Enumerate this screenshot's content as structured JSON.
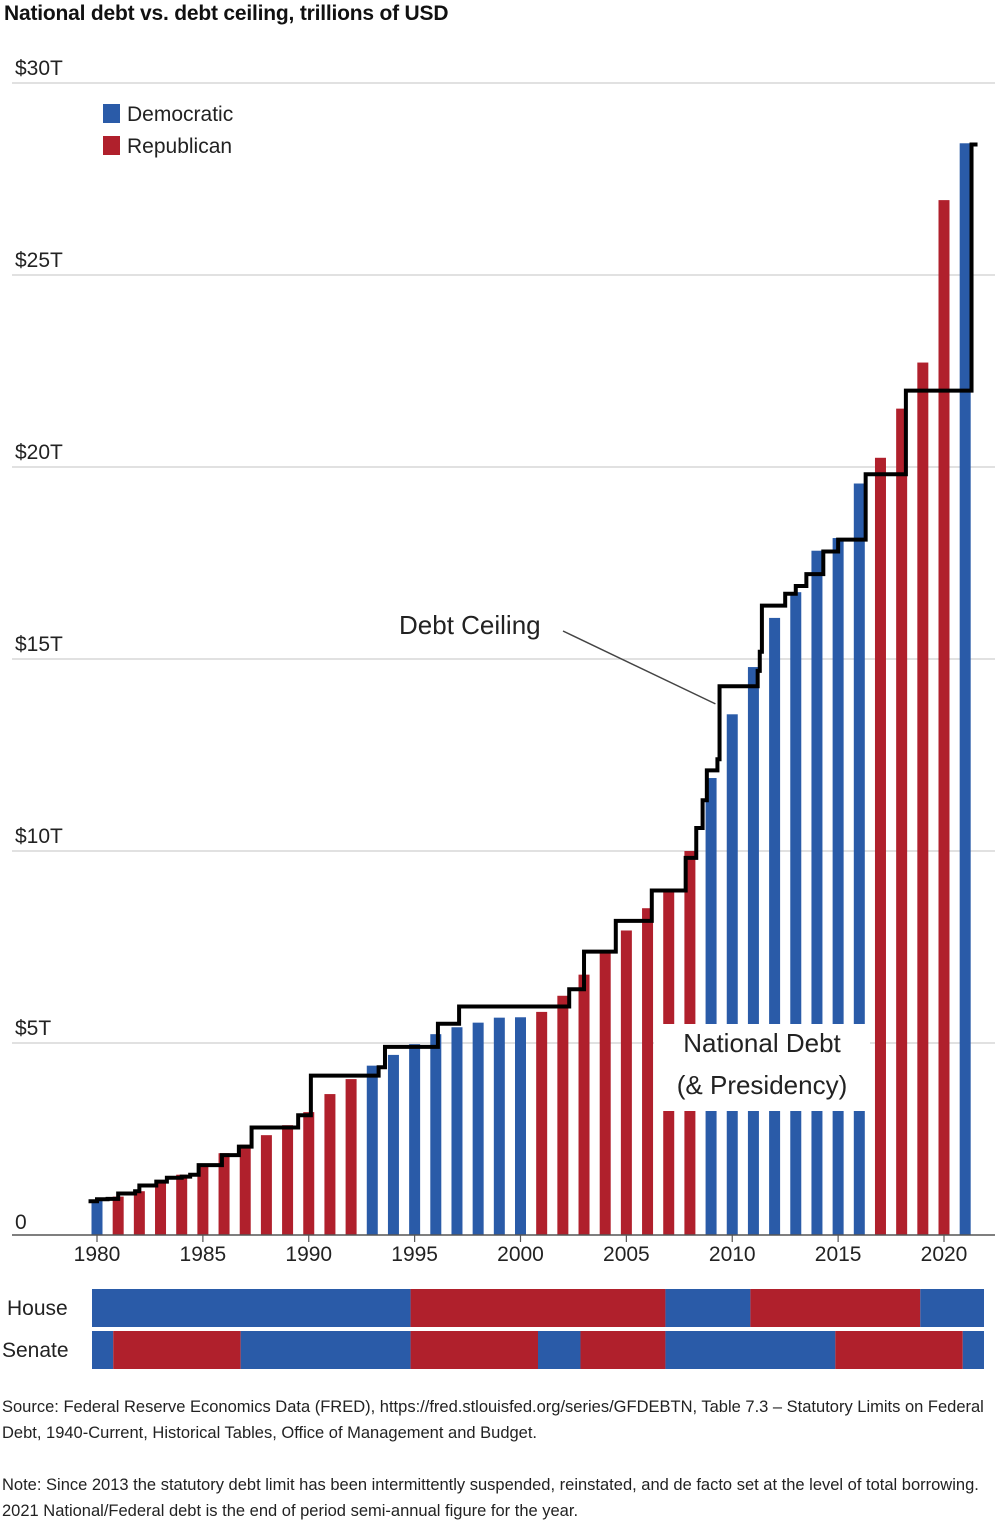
{
  "title": "National debt vs. debt ceiling, trillions of USD",
  "source_note": "Source: Federal Reserve Economics Data (FRED), https://fred.stlouisfed.org/series/GFDEBTN, Table 7.3 – Statutory Limits on Federal Debt, 1940-Current, Historical Tables, Office of Management and Budget.",
  "footnote": "Note: Since 2013 the statutory debt limit has been intermittently suspended, reinstated, and de facto set at the level of total borrowing. 2021 National/Federal debt is the end of period semi-annual figure for the year.",
  "colors": {
    "democratic": "#2a5ba8",
    "republican": "#b0202c",
    "ceiling": "#000000",
    "grid": "#cfcfcf"
  },
  "chart_data": {
    "type": "bar",
    "title": "National debt vs. debt ceiling, trillions of USD",
    "xlabel": "",
    "ylabel": "",
    "ylim": [
      0,
      30
    ],
    "xlim": [
      1979.5,
      2021.5
    ],
    "yticks": [
      {
        "value": 0,
        "label": "0"
      },
      {
        "value": 5,
        "label": "$5T"
      },
      {
        "value": 10,
        "label": "$10T"
      },
      {
        "value": 15,
        "label": "$15T"
      },
      {
        "value": 20,
        "label": "$20T"
      },
      {
        "value": 25,
        "label": "$25T"
      },
      {
        "value": 30,
        "label": "$30T"
      }
    ],
    "xticks": [
      1980,
      1985,
      1990,
      1995,
      2000,
      2005,
      2010,
      2015,
      2020
    ],
    "grid": true,
    "legend": {
      "placement": "top-left",
      "entries": [
        {
          "name": "Democratic",
          "party": "D"
        },
        {
          "name": "Republican",
          "party": "R"
        }
      ]
    },
    "series": [
      {
        "name": "National Debt (& Presidency)",
        "years": [
          1980,
          1981,
          1982,
          1983,
          1984,
          1985,
          1986,
          1987,
          1988,
          1989,
          1990,
          1991,
          1992,
          1993,
          1994,
          1995,
          1996,
          1997,
          1998,
          1999,
          2000,
          2001,
          2002,
          2003,
          2004,
          2005,
          2006,
          2007,
          2008,
          2009,
          2010,
          2011,
          2012,
          2013,
          2014,
          2015,
          2016,
          2017,
          2018,
          2019,
          2020,
          2021
        ],
        "values": [
          0.91,
          1.0,
          1.14,
          1.38,
          1.57,
          1.82,
          2.13,
          2.35,
          2.6,
          2.86,
          3.2,
          3.67,
          4.06,
          4.41,
          4.69,
          4.97,
          5.23,
          5.41,
          5.53,
          5.66,
          5.67,
          5.81,
          6.23,
          6.78,
          7.38,
          7.93,
          8.51,
          9.01,
          10.0,
          11.9,
          13.56,
          14.79,
          16.07,
          16.74,
          17.82,
          18.15,
          19.57,
          20.24,
          21.52,
          22.72,
          26.95,
          28.43
        ],
        "presidency": [
          "D",
          "R",
          "R",
          "R",
          "R",
          "R",
          "R",
          "R",
          "R",
          "R",
          "R",
          "R",
          "R",
          "D",
          "D",
          "D",
          "D",
          "D",
          "D",
          "D",
          "D",
          "R",
          "R",
          "R",
          "R",
          "R",
          "R",
          "R",
          "R",
          "D",
          "D",
          "D",
          "D",
          "D",
          "D",
          "D",
          "D",
          "R",
          "R",
          "R",
          "R",
          "D"
        ]
      },
      {
        "name": "Debt Ceiling",
        "type": "step",
        "points": [
          [
            1979.6,
            0.88
          ],
          [
            1980.0,
            0.93
          ],
          [
            1980.5,
            0.94
          ],
          [
            1981.0,
            1.08
          ],
          [
            1981.8,
            1.14
          ],
          [
            1982.0,
            1.29
          ],
          [
            1982.8,
            1.39
          ],
          [
            1983.3,
            1.49
          ],
          [
            1984.0,
            1.52
          ],
          [
            1984.4,
            1.57
          ],
          [
            1984.8,
            1.82
          ],
          [
            1985.9,
            2.08
          ],
          [
            1986.7,
            2.3
          ],
          [
            1987.3,
            2.8
          ],
          [
            1989.5,
            3.12
          ],
          [
            1990.1,
            4.15
          ],
          [
            1993.3,
            4.37
          ],
          [
            1993.6,
            4.9
          ],
          [
            1996.1,
            5.5
          ],
          [
            1997.1,
            5.95
          ],
          [
            2002.3,
            6.4
          ],
          [
            2003.0,
            7.38
          ],
          [
            2004.5,
            8.18
          ],
          [
            2006.2,
            8.97
          ],
          [
            2007.8,
            9.82
          ],
          [
            2008.3,
            10.6
          ],
          [
            2008.6,
            11.32
          ],
          [
            2008.8,
            12.1
          ],
          [
            2009.3,
            12.39
          ],
          [
            2009.4,
            14.29
          ],
          [
            2011.2,
            14.69
          ],
          [
            2011.3,
            15.19
          ],
          [
            2011.4,
            16.39
          ],
          [
            2012.5,
            16.7
          ],
          [
            2013.0,
            16.9
          ],
          [
            2013.5,
            17.21
          ],
          [
            2014.3,
            17.8
          ],
          [
            2015.0,
            18.11
          ],
          [
            2016.0,
            18.11
          ],
          [
            2016.3,
            19.81
          ],
          [
            2018.2,
            21.99
          ],
          [
            2019.2,
            21.99
          ],
          [
            2020.6,
            21.99
          ],
          [
            2021.3,
            28.4
          ]
        ]
      }
    ],
    "annotations": [
      {
        "text": "Debt Ceiling",
        "points_to": [
          2009.3,
          14.3
        ]
      },
      {
        "text_lines": [
          "National Debt",
          "(& Presidency)"
        ]
      }
    ],
    "control_strips": [
      {
        "label": "House",
        "segments": [
          {
            "from": 1979.5,
            "to": 1994.5,
            "party": "D"
          },
          {
            "from": 1994.5,
            "to": 2006.5,
            "party": "R"
          },
          {
            "from": 2006.5,
            "to": 2010.5,
            "party": "D"
          },
          {
            "from": 2010.5,
            "to": 2018.5,
            "party": "R"
          },
          {
            "from": 2018.5,
            "to": 2021.5,
            "party": "D"
          }
        ]
      },
      {
        "label": "Senate",
        "segments": [
          {
            "from": 1979.5,
            "to": 1980.5,
            "party": "D"
          },
          {
            "from": 1980.5,
            "to": 1986.5,
            "party": "R"
          },
          {
            "from": 1986.5,
            "to": 1994.5,
            "party": "D"
          },
          {
            "from": 1994.5,
            "to": 2000.5,
            "party": "R"
          },
          {
            "from": 2000.5,
            "to": 2002.5,
            "party": "D"
          },
          {
            "from": 2002.5,
            "to": 2006.5,
            "party": "R"
          },
          {
            "from": 2006.5,
            "to": 2014.5,
            "party": "D"
          },
          {
            "from": 2014.5,
            "to": 2020.5,
            "party": "R"
          },
          {
            "from": 2020.5,
            "to": 2021.5,
            "party": "D"
          }
        ]
      }
    ]
  }
}
